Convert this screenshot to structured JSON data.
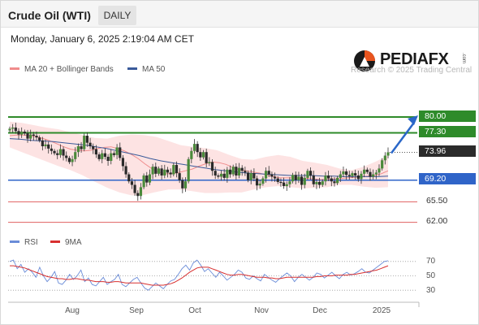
{
  "header": {
    "instrument": "Crude Oil (WTI)",
    "timeframe": "DAILY",
    "timestamp": "Monday, January 6, 2025 2:19:04 AM CET"
  },
  "logo": {
    "text": "PEDIAFX",
    "sup": ".com",
    "copyright": "Research © 2025 Trading Central"
  },
  "legend": {
    "bollinger": {
      "label": "MA 20 + Bollinger Bands",
      "color": "#f08c8c"
    },
    "ma50": {
      "label": "MA 50",
      "color": "#3a5a9a"
    }
  },
  "rsi_legend": {
    "rsi": {
      "label": "RSI",
      "color": "#6a8cd8"
    },
    "ma9": {
      "label": "9MA",
      "color": "#d83030"
    }
  },
  "levels": {
    "r2": "80.00",
    "r1": "77.30",
    "last": "73.96",
    "pivot": "69.20",
    "s1": "65.50",
    "s2": "62.00"
  },
  "rsi_levels": [
    "70",
    "50",
    "30"
  ],
  "months": [
    "Aug",
    "Sep",
    "Oct",
    "Nov",
    "Dec",
    "2025"
  ],
  "colors": {
    "green": "#2e8b2a",
    "blue": "#2f64c8",
    "red": "#e06060",
    "bull": "#4a8a3a",
    "bear": "#2a2a2a",
    "band": "#fde3e3",
    "arrow": "#2a67c8"
  },
  "chart_data": {
    "type": "candlestick",
    "title": "Crude Oil (WTI)",
    "timeframe": "DAILY",
    "price_axis_labels": [
      80.0,
      77.3,
      73.96,
      69.2,
      65.5,
      62.0
    ],
    "ylim": [
      61.5,
      80.5
    ],
    "series": [
      {
        "name": "MA 20 + Bollinger Bands"
      },
      {
        "name": "MA 50"
      }
    ],
    "close_path": [
      78.0,
      78.2,
      77.6,
      77.0,
      77.5,
      77.2,
      76.3,
      77.0,
      76.8,
      76.5,
      76.0,
      75.0,
      75.3,
      74.6,
      74.2,
      73.8,
      73.5,
      74.5,
      73.4,
      73.0,
      72.3,
      72.8,
      74.0,
      75.0,
      74.5,
      76.8,
      75.6,
      75.0,
      74.5,
      73.6,
      72.8,
      73.8,
      73.2,
      72.5,
      73.8,
      73.5,
      74.8,
      73.0,
      71.6,
      70.2,
      69.0,
      68.4,
      67.0,
      66.5,
      68.0,
      70.0,
      68.8,
      70.2,
      71.5,
      70.3,
      71.2,
      70.0,
      71.0,
      70.5,
      70.2,
      71.8,
      70.4,
      69.2,
      67.8,
      69.0,
      72.8,
      74.2,
      75.4,
      74.0,
      73.1,
      74.0,
      72.1,
      72.3,
      70.8,
      70.0,
      69.8,
      70.3,
      69.6,
      71.0,
      70.2,
      71.5,
      70.0,
      71.3,
      70.8,
      70.5,
      69.2,
      70.4,
      69.5,
      68.3,
      68.6,
      69.5,
      70.8,
      70.2,
      69.8,
      69.5,
      68.9,
      68.8,
      68.2,
      68.5,
      69.0,
      70.1,
      69.2,
      69.8,
      68.4,
      69.6,
      70.8,
      70.0,
      68.5,
      68.9,
      68.4,
      69.0,
      70.0,
      69.5,
      69.0,
      68.7,
      69.6,
      70.2,
      70.7,
      70.1,
      69.9,
      70.4,
      70.0,
      69.4,
      70.3,
      71.0,
      70.6,
      69.8,
      70.2,
      70.5,
      71.2,
      72.6,
      73.4,
      73.96
    ],
    "ma20_path": [
      76.8,
      76.9,
      76.9,
      76.8,
      76.6,
      76.3,
      75.9,
      75.4,
      74.9,
      74.5,
      74.3,
      74.2,
      74.3,
      74.6,
      74.8,
      74.9,
      74.6,
      74.2,
      73.6,
      72.9,
      72.0,
      71.2,
      70.6,
      70.3,
      70.3,
      70.5,
      70.8,
      71.1,
      71.6,
      72.0,
      72.3,
      72.2,
      71.9,
      71.4,
      71.0,
      70.8,
      70.6,
      70.4,
      70.1,
      69.8,
      69.6,
      69.6,
      69.6,
      69.5,
      69.5,
      69.4,
      69.3,
      69.3,
      69.4,
      69.5,
      69.6,
      69.7,
      69.8,
      69.9,
      70.0,
      70.3,
      70.8
    ],
    "ma50_path": [
      76.3,
      76.2,
      76.0,
      75.9,
      75.8,
      75.6,
      75.4,
      75.2,
      74.9,
      74.6,
      74.2,
      73.8,
      73.4,
      72.9,
      72.5,
      72.2,
      71.9,
      71.6,
      71.3,
      71.0,
      70.8,
      70.6,
      70.4,
      70.3,
      70.2,
      70.1,
      70.0,
      70.0,
      70.0,
      69.9,
      69.9,
      69.8,
      69.8,
      69.8,
      69.8,
      69.9
    ],
    "bb_upper_path": [
      79.2,
      79.0,
      78.6,
      78.2,
      77.9,
      77.4,
      76.9,
      76.4,
      76.3,
      76.8,
      77.0,
      76.9,
      76.6,
      75.9,
      75.2,
      74.9,
      74.7,
      74.3,
      73.5,
      72.8,
      72.7,
      73.2,
      73.5,
      73.2,
      72.5,
      72.2,
      71.8,
      71.2,
      70.9,
      71.5,
      72.4,
      73.4
    ],
    "bb_lower_path": [
      74.8,
      74.0,
      73.2,
      72.4,
      71.6,
      70.9,
      70.0,
      68.9,
      67.9,
      67.1,
      66.6,
      66.7,
      67.2,
      67.6,
      67.6,
      67.3,
      67.0,
      67.0,
      67.1,
      67.1,
      67.6,
      68.0,
      68.2,
      68.0,
      67.8,
      67.9,
      68.0,
      68.4,
      68.4,
      68.1,
      67.9,
      68.0
    ],
    "levels": [
      {
        "label": "80.00",
        "value": 80.0,
        "type": "resistance"
      },
      {
        "label": "77.30",
        "value": 77.3,
        "type": "resistance"
      },
      {
        "label": "73.96",
        "value": 73.96,
        "type": "last"
      },
      {
        "label": "69.20",
        "value": 69.2,
        "type": "pivot"
      },
      {
        "label": "65.50",
        "value": 65.5,
        "type": "support"
      },
      {
        "label": "62.00",
        "value": 62.0,
        "type": "support"
      }
    ],
    "x_tick_labels": [
      "Aug",
      "Sep",
      "Oct",
      "Nov",
      "Dec",
      "2025"
    ],
    "rsi": {
      "series": [
        {
          "name": "RSI"
        },
        {
          "name": "9MA"
        }
      ],
      "y_ticks": [
        70,
        50,
        30
      ],
      "ylim": [
        20,
        80
      ],
      "rsi_values": [
        70,
        72,
        60,
        66,
        55,
        60,
        55,
        48,
        62,
        50,
        42,
        48,
        56,
        40,
        38,
        44,
        52,
        45,
        50,
        58,
        42,
        47,
        38,
        36,
        42,
        48,
        38,
        42,
        45,
        52,
        38,
        35,
        40,
        45,
        48,
        40,
        33,
        30,
        35,
        40,
        36,
        32,
        38,
        43,
        45,
        52,
        60,
        65,
        58,
        68,
        72,
        65,
        56,
        60,
        54,
        48,
        55,
        50,
        44,
        48,
        52,
        58,
        55,
        47,
        45,
        50,
        46,
        43,
        52,
        48,
        44,
        41,
        46,
        50,
        54,
        50,
        42,
        48,
        52,
        48,
        44,
        48,
        54,
        52,
        47,
        51,
        55,
        50,
        46,
        52,
        55,
        51,
        53,
        56,
        60,
        55,
        54,
        58,
        62,
        66,
        70,
        71
      ],
      "ma9_values": [
        64,
        64,
        63,
        62,
        61,
        59,
        57,
        55,
        53,
        51,
        49,
        48,
        47,
        46,
        46,
        45,
        45,
        46,
        46,
        45,
        44,
        44,
        43,
        42,
        42,
        42,
        41,
        41,
        42,
        42,
        41,
        40,
        40,
        40,
        40,
        40,
        39,
        38,
        37,
        37,
        37,
        37,
        38,
        39,
        41,
        44,
        47,
        51,
        55,
        58,
        61,
        62,
        62,
        62,
        60,
        58,
        56,
        54,
        52,
        51,
        51,
        52,
        52,
        51,
        50,
        49,
        48,
        48,
        48,
        47,
        47,
        46,
        46,
        47,
        48,
        48,
        48,
        48,
        48,
        48,
        48,
        48,
        49,
        49,
        50,
        50,
        50,
        51,
        51,
        51,
        51,
        52,
        52,
        53,
        54,
        55,
        56,
        57,
        58,
        60,
        62,
        64
      ]
    }
  }
}
